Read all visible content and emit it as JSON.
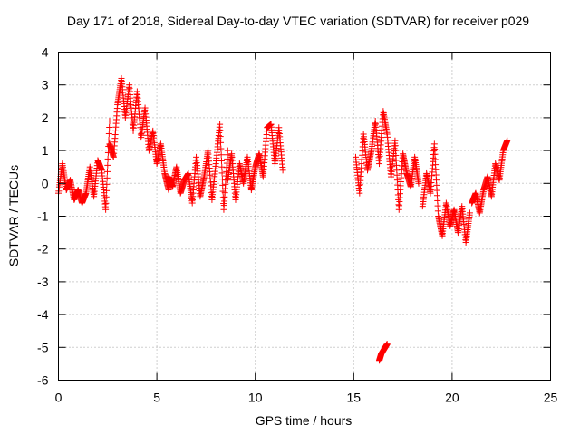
{
  "chart_data": {
    "type": "scatter",
    "title": "Day 171 of 2018, Sidereal Day-to-day VTEC variation (SDTVAR) for receiver p029",
    "xlabel": "GPS time / hours",
    "ylabel": "SDTVAR / TECUs",
    "xlim": [
      0,
      25
    ],
    "ylim": [
      -6,
      4
    ],
    "xticks": [
      0,
      5,
      10,
      15,
      20,
      25
    ],
    "yticks": [
      -6,
      -5,
      -4,
      -3,
      -2,
      -1,
      0,
      1,
      2,
      3,
      4
    ],
    "xtick_labels": [
      "0",
      "5",
      "10",
      "15",
      "20",
      "25"
    ],
    "ytick_labels": [
      "-6",
      "-5",
      "-4",
      "-3",
      "-2",
      "-1",
      "0",
      "1",
      "2",
      "3",
      "4"
    ],
    "grid": true,
    "marker": "+",
    "color": "#ff0000",
    "series": [
      {
        "name": "SDTVAR",
        "segments": [
          {
            "x": [
              0.0,
              0.2,
              0.4,
              0.6,
              0.8,
              1.0,
              1.2,
              1.4,
              1.6,
              1.8,
              2.0,
              2.2,
              2.4,
              2.6
            ],
            "y": [
              -0.3,
              0.6,
              -0.2,
              0.1,
              -0.5,
              -0.2,
              -0.6,
              -0.3,
              0.5,
              -0.4,
              0.7,
              0.4,
              -0.8,
              1.9
            ]
          },
          {
            "x": [
              2.6,
              2.8,
              3.0,
              3.2,
              3.4,
              3.6,
              3.8,
              4.0,
              4.2,
              4.4,
              4.6,
              4.8,
              5.0,
              5.2,
              5.4,
              5.6
            ],
            "y": [
              1.2,
              0.8,
              2.4,
              3.2,
              2.0,
              3.0,
              1.6,
              2.8,
              1.4,
              2.3,
              1.0,
              1.6,
              0.6,
              1.2,
              0.3,
              -0.2
            ]
          },
          {
            "x": [
              5.6,
              5.8,
              6.0,
              6.2,
              6.4,
              6.6,
              6.8,
              7.0,
              7.2,
              7.4,
              7.6,
              7.8,
              8.0,
              8.2,
              8.4,
              8.6
            ],
            "y": [
              0.2,
              -0.1,
              0.5,
              -0.3,
              0.1,
              0.3,
              -0.6,
              0.8,
              -0.4,
              0.2,
              1.0,
              -0.5,
              0.6,
              1.8,
              -0.8,
              1.0
            ]
          },
          {
            "x": [
              8.6,
              8.8,
              9.0,
              9.2,
              9.4,
              9.6,
              9.8,
              10.0,
              10.2,
              10.4,
              10.6,
              10.8,
              11.0,
              11.2,
              11.4
            ],
            "y": [
              0.1,
              0.9,
              -0.5,
              0.6,
              0.0,
              0.8,
              -0.2,
              0.5,
              0.9,
              0.2,
              1.7,
              1.8,
              0.6,
              1.7,
              0.4
            ]
          },
          {
            "x": [
              15.1,
              15.3,
              15.5,
              15.7,
              15.9,
              16.1,
              16.3,
              16.5,
              16.7,
              16.9,
              17.1,
              17.3,
              17.5,
              17.7,
              17.9,
              18.1,
              18.3
            ],
            "y": [
              0.8,
              -0.3,
              1.5,
              0.4,
              1.0,
              1.9,
              0.6,
              2.2,
              1.5,
              0.2,
              1.3,
              -0.8,
              0.9,
              0.3,
              -0.1,
              0.8,
              0.0
            ]
          },
          {
            "x": [
              16.3,
              16.4,
              16.5,
              16.6,
              16.7
            ],
            "y": [
              -5.4,
              -5.2,
              -5.1,
              -5.0,
              -4.9
            ]
          },
          {
            "x": [
              18.5,
              18.7,
              18.9,
              19.1,
              19.3,
              19.5,
              19.7,
              19.9,
              20.1,
              20.3,
              20.5,
              20.7,
              20.9
            ],
            "y": [
              -0.7,
              0.3,
              -0.3,
              1.2,
              -1.0,
              -1.6,
              -0.6,
              -1.3,
              -0.8,
              -1.5,
              -0.7,
              -1.8,
              -0.9
            ]
          },
          {
            "x": [
              21.0,
              21.2,
              21.4,
              21.6,
              21.8,
              22.0,
              22.2,
              22.4,
              22.6,
              22.8
            ],
            "y": [
              -0.6,
              -0.3,
              -0.9,
              -0.2,
              0.2,
              -0.4,
              0.6,
              0.1,
              1.0,
              1.3
            ]
          }
        ]
      }
    ]
  }
}
